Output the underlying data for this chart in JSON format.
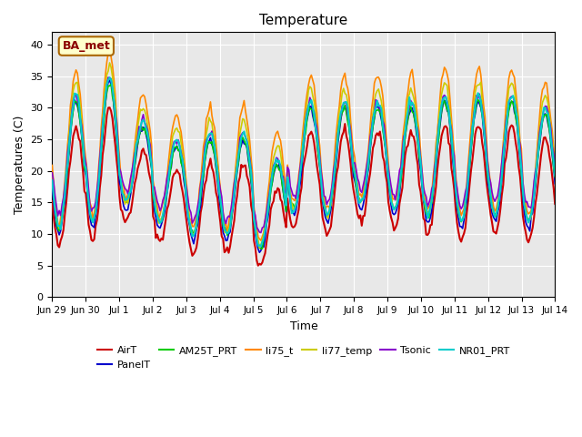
{
  "title": "Temperature",
  "ylabel": "Temperatures (C)",
  "xlabel": "Time",
  "annotation": "BA_met",
  "ylim": [
    0,
    42
  ],
  "yticks": [
    0,
    5,
    10,
    15,
    20,
    25,
    30,
    35,
    40
  ],
  "bg_color": "#e8e8e8",
  "fig_color": "#ffffff",
  "series": {
    "AirT": {
      "color": "#cc0000",
      "lw": 1.5
    },
    "PanelT": {
      "color": "#0000cc",
      "lw": 1.2
    },
    "AM25T_PRT": {
      "color": "#00cc00",
      "lw": 1.2
    },
    "li75_t": {
      "color": "#ff8800",
      "lw": 1.2
    },
    "li77_temp": {
      "color": "#cccc00",
      "lw": 1.2
    },
    "Tsonic": {
      "color": "#8800cc",
      "lw": 1.2
    },
    "NR01_PRT": {
      "color": "#00cccc",
      "lw": 1.5
    }
  },
  "legend_series": [
    "AirT",
    "PanelT",
    "AM25T_PRT",
    "li75_t",
    "li77_temp",
    "Tsonic",
    "NR01_PRT"
  ],
  "legend_colors": [
    "#cc0000",
    "#0000cc",
    "#00cc00",
    "#ff8800",
    "#cccc00",
    "#8800cc",
    "#00cccc"
  ],
  "xticklabels": [
    "Jun 29",
    "Jun 30",
    "Jul 1",
    "Jul 2",
    "Jul 3",
    "Jul 4",
    "Jul 5",
    "Jul 6",
    "Jul 7",
    "Jul 8",
    "Jul 9",
    "Jul 10",
    "Jul 11",
    "Jul 12",
    "Jul 13",
    "Jul 14"
  ]
}
